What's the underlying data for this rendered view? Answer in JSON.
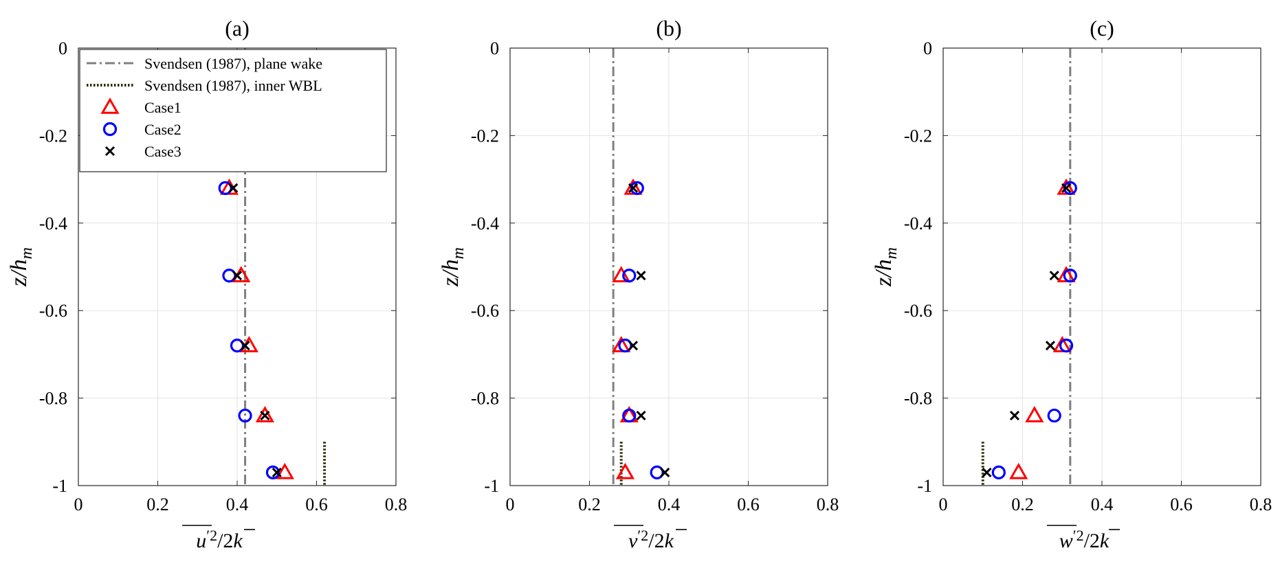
{
  "chart_data": [
    {
      "type": "scatter",
      "title": "(a)",
      "xlabel": "u'^2/2k",
      "xlabel_parts": {
        "var": "u",
        "prime": "′2",
        "tail": "/2",
        "k": "k"
      },
      "ylabel": "z/h_m",
      "ylabel_parts": {
        "main": "z/h",
        "sub": "m"
      },
      "xlim": [
        0,
        0.8
      ],
      "ylim": [
        -1,
        0
      ],
      "xticks": [
        "0",
        "0.2",
        "0.4",
        "0.6",
        "0.8"
      ],
      "yticks": [
        "0",
        "-0.2",
        "-0.4",
        "-0.6",
        "-0.8",
        "-1"
      ],
      "grid": true,
      "legend_position": "top-left",
      "lines": [
        {
          "name": "Svendsen (1987), plane wake",
          "style": "dashdot",
          "color": "#7f7f7f",
          "x": 0.42,
          "y_range": [
            -1,
            0
          ]
        },
        {
          "name": "Svendsen (1987), inner WBL",
          "style": "dotted",
          "color": "#2b2b00",
          "x": 0.62,
          "y_range": [
            -1,
            -0.9
          ]
        }
      ],
      "series": [
        {
          "name": "Case1",
          "marker": "triangle",
          "color": "#ff0000",
          "x": [
            0.38,
            0.41,
            0.43,
            0.47,
            0.52
          ],
          "y": [
            -0.32,
            -0.52,
            -0.68,
            -0.84,
            -0.97
          ]
        },
        {
          "name": "Case2",
          "marker": "circle",
          "color": "#0000ff",
          "x": [
            0.37,
            0.38,
            0.4,
            0.42,
            0.49
          ],
          "y": [
            -0.32,
            -0.52,
            -0.68,
            -0.84,
            -0.97
          ]
        },
        {
          "name": "Case3",
          "marker": "x",
          "color": "#000000",
          "x": [
            0.39,
            0.4,
            0.42,
            0.47,
            0.5
          ],
          "y": [
            -0.32,
            -0.52,
            -0.68,
            -0.84,
            -0.97
          ]
        }
      ]
    },
    {
      "type": "scatter",
      "title": "(b)",
      "xlabel": "v'^2/2k",
      "xlabel_parts": {
        "var": "v",
        "prime": "′2",
        "tail": "/2",
        "k": "k"
      },
      "ylabel": "z/h_m",
      "ylabel_parts": {
        "main": "z/h",
        "sub": "m"
      },
      "xlim": [
        0,
        0.8
      ],
      "ylim": [
        -1,
        0
      ],
      "xticks": [
        "0",
        "0.2",
        "0.4",
        "0.6",
        "0.8"
      ],
      "yticks": [
        "0",
        "-0.2",
        "-0.4",
        "-0.6",
        "-0.8",
        "-1"
      ],
      "grid": true,
      "lines": [
        {
          "name": "Svendsen (1987), plane wake",
          "style": "dashdot",
          "color": "#7f7f7f",
          "x": 0.26,
          "y_range": [
            -1,
            0
          ]
        },
        {
          "name": "Svendsen (1987), inner WBL",
          "style": "dotted",
          "color": "#2b2b00",
          "x": 0.28,
          "y_range": [
            -1,
            -0.9
          ]
        }
      ],
      "series": [
        {
          "name": "Case1",
          "marker": "triangle",
          "color": "#ff0000",
          "x": [
            0.31,
            0.28,
            0.28,
            0.3,
            0.29
          ],
          "y": [
            -0.32,
            -0.52,
            -0.68,
            -0.84,
            -0.97
          ]
        },
        {
          "name": "Case2",
          "marker": "circle",
          "color": "#0000ff",
          "x": [
            0.32,
            0.3,
            0.29,
            0.3,
            0.37
          ],
          "y": [
            -0.32,
            -0.52,
            -0.68,
            -0.84,
            -0.97
          ]
        },
        {
          "name": "Case3",
          "marker": "x",
          "color": "#000000",
          "x": [
            0.31,
            0.33,
            0.31,
            0.33,
            0.39
          ],
          "y": [
            -0.32,
            -0.52,
            -0.68,
            -0.84,
            -0.97
          ]
        }
      ]
    },
    {
      "type": "scatter",
      "title": "(c)",
      "xlabel": "w'^2/2k",
      "xlabel_parts": {
        "var": "w",
        "prime": "′2",
        "tail": "/2",
        "k": "k"
      },
      "ylabel": "z/h_m",
      "ylabel_parts": {
        "main": "z/h",
        "sub": "m"
      },
      "xlim": [
        0,
        0.8
      ],
      "ylim": [
        -1,
        0
      ],
      "xticks": [
        "0",
        "0.2",
        "0.4",
        "0.6",
        "0.8"
      ],
      "yticks": [
        "0",
        "-0.2",
        "-0.4",
        "-0.6",
        "-0.8",
        "-1"
      ],
      "grid": true,
      "lines": [
        {
          "name": "Svendsen (1987), plane wake",
          "style": "dashdot",
          "color": "#7f7f7f",
          "x": 0.32,
          "y_range": [
            -1,
            0
          ]
        },
        {
          "name": "Svendsen (1987), inner WBL",
          "style": "dotted",
          "color": "#2b2b00",
          "x": 0.1,
          "y_range": [
            -1,
            -0.9
          ]
        }
      ],
      "series": [
        {
          "name": "Case1",
          "marker": "triangle",
          "color": "#ff0000",
          "x": [
            0.31,
            0.31,
            0.3,
            0.23,
            0.19
          ],
          "y": [
            -0.32,
            -0.52,
            -0.68,
            -0.84,
            -0.97
          ]
        },
        {
          "name": "Case2",
          "marker": "circle",
          "color": "#0000ff",
          "x": [
            0.32,
            0.32,
            0.31,
            0.28,
            0.14
          ],
          "y": [
            -0.32,
            -0.52,
            -0.68,
            -0.84,
            -0.97
          ]
        },
        {
          "name": "Case3",
          "marker": "x",
          "color": "#000000",
          "x": [
            0.31,
            0.28,
            0.27,
            0.18,
            0.11
          ],
          "y": [
            -0.32,
            -0.52,
            -0.68,
            -0.84,
            -0.97
          ]
        }
      ]
    }
  ],
  "legend": {
    "entries": [
      {
        "label": "Svendsen (1987), plane wake",
        "kind": "dashdot",
        "color": "#7f7f7f"
      },
      {
        "label": "Svendsen (1987), inner WBL",
        "kind": "dotted",
        "color": "#2b2b00"
      },
      {
        "label": "Case1",
        "kind": "triangle",
        "color": "#ff0000"
      },
      {
        "label": "Case2",
        "kind": "circle",
        "color": "#0000ff"
      },
      {
        "label": "Case3",
        "kind": "x",
        "color": "#000000"
      }
    ]
  }
}
